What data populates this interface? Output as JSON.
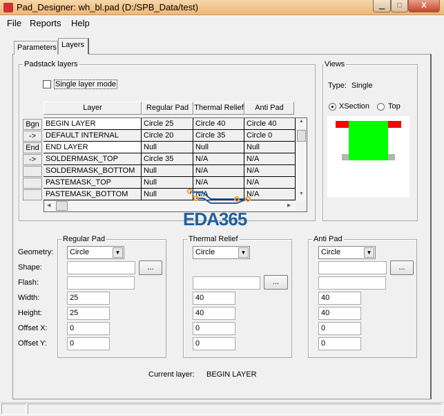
{
  "window": {
    "title": "Pad_Designer: wh_bl.pad (D:/SPB_Data/test)"
  },
  "menu": [
    "File",
    "Reports",
    "Help"
  ],
  "tabs": [
    "Parameters",
    "Layers"
  ],
  "padstack": {
    "label": "Padstack layers",
    "single_layer_mode": "Single layer mode",
    "single_layer_checked": false,
    "headers": [
      "Layer",
      "Regular Pad",
      "Thermal Relief",
      "Anti Pad"
    ],
    "row_buttons": [
      "Bgn",
      "->",
      "End",
      "->",
      "",
      "",
      ""
    ],
    "rows": [
      [
        "BEGIN LAYER",
        "Circle 25",
        "Circle 40",
        "Circle 40"
      ],
      [
        "DEFAULT INTERNAL",
        "Circle 20",
        "Circle 35",
        "Circle 0"
      ],
      [
        "END LAYER",
        "Null",
        "Null",
        "Null"
      ],
      [
        "SOLDERMASK_TOP",
        "Circle 35",
        "N/A",
        "N/A"
      ],
      [
        "SOLDERMASK_BOTTOM",
        "Null",
        "N/A",
        "N/A"
      ],
      [
        "PASTEMASK_TOP",
        "Null",
        "N/A",
        "N/A"
      ],
      [
        "PASTEMASK_BOTTOM",
        "Null",
        "N/A",
        "N/A"
      ]
    ]
  },
  "views": {
    "label": "Views",
    "type_label": "Type:",
    "type_value": "Single",
    "radio_xsection": "XSection",
    "radio_top": "Top",
    "selected": "XSection",
    "colors": {
      "pad": "#ff0000",
      "drill": "#00ff00",
      "anti": "#b4b4b4"
    }
  },
  "field_labels": [
    "Geometry:",
    "Shape:",
    "Flash:",
    "Width:",
    "Height:",
    "Offset X:",
    "Offset Y:"
  ],
  "regular_pad": {
    "label": "Regular Pad",
    "geometry": "Circle",
    "shape": "",
    "flash": "",
    "width": "25",
    "height": "25",
    "offset_x": "0",
    "offset_y": "0",
    "browse": "..."
  },
  "thermal_relief": {
    "label": "Thermal Relief",
    "geometry": "Circle",
    "flash": "",
    "width": "40",
    "height": "40",
    "offset_x": "0",
    "offset_y": "0",
    "browse": "..."
  },
  "anti_pad": {
    "label": "Anti Pad",
    "geometry": "Circle",
    "shape": "",
    "flash": "",
    "width": "40",
    "height": "40",
    "offset_x": "0",
    "offset_y": "0",
    "browse": "..."
  },
  "current_layer": {
    "label": "Current layer:",
    "value": "BEGIN LAYER"
  },
  "watermark": "EDA365"
}
